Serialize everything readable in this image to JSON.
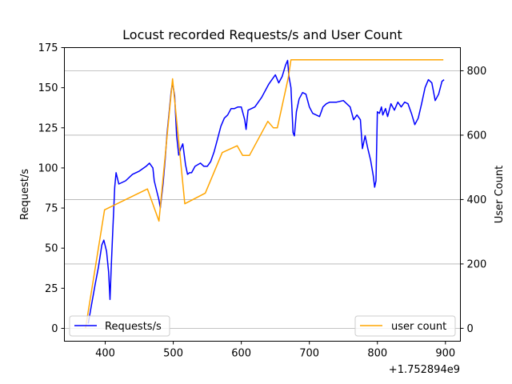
{
  "chart_data": {
    "type": "line",
    "title": "Locust recorded Requests/s and User Count",
    "x_offset_label": "+1.752894e9",
    "xlim": [
      340,
      922
    ],
    "x_ticks": [
      400,
      500,
      600,
      700,
      800,
      900
    ],
    "x_tick_labels": [
      "400",
      "500",
      "600",
      "700",
      "800",
      "900"
    ],
    "ylabel": "Request/s",
    "ylim": [
      -8,
      175
    ],
    "y_ticks": [
      0,
      25,
      50,
      75,
      100,
      125,
      150,
      175
    ],
    "y_tick_labels": [
      "0",
      "25",
      "50",
      "75",
      "100",
      "125",
      "150",
      "175"
    ],
    "y2label": "User Count",
    "y2lim": [
      -40,
      872
    ],
    "y2_ticks": [
      0,
      200,
      400,
      600,
      800
    ],
    "y2_tick_labels": [
      "0",
      "200",
      "400",
      "600",
      "800"
    ],
    "grid": "horizontal lines on the User Count axis",
    "series": [
      {
        "name": "Requests/s",
        "axis": "left",
        "color": "#0000ff",
        "x": [
          375,
          380,
          385,
          390,
          395,
          398,
          402,
          405,
          407,
          409,
          411,
          414,
          416,
          420,
          430,
          440,
          450,
          460,
          465,
          470,
          472,
          476,
          479,
          481,
          485,
          488,
          491,
          494,
          497,
          499,
          502,
          505,
          508,
          511,
          514,
          518,
          521,
          524,
          527,
          532,
          540,
          545,
          550,
          555,
          560,
          565,
          570,
          575,
          580,
          585,
          590,
          595,
          600,
          605,
          607,
          610,
          615,
          620,
          630,
          640,
          645,
          650,
          655,
          660,
          665,
          668,
          670,
          673,
          676,
          678,
          681,
          685,
          690,
          695,
          700,
          705,
          710,
          715,
          720,
          725,
          730,
          740,
          750,
          760,
          765,
          770,
          775,
          778,
          782,
          786,
          790,
          794,
          796,
          798,
          800,
          803,
          806,
          808,
          812,
          815,
          820,
          825,
          830,
          835,
          840,
          845,
          850,
          855,
          860,
          865,
          870,
          875,
          880,
          885,
          890,
          895,
          898
        ],
        "values": [
          3,
          15,
          27,
          38,
          52,
          55,
          48,
          35,
          18,
          40,
          60,
          88,
          97,
          90,
          92,
          96,
          98,
          101,
          103,
          100,
          92,
          85,
          80,
          75,
          90,
          105,
          122,
          135,
          148,
          153,
          145,
          120,
          108,
          112,
          115,
          102,
          96,
          97,
          97,
          101,
          103,
          101,
          101,
          104,
          110,
          118,
          126,
          131,
          133,
          137,
          137,
          138,
          138,
          130,
          124,
          136,
          137,
          138,
          144,
          152,
          155,
          158,
          153,
          157,
          164,
          167,
          157,
          150,
          122,
          120,
          135,
          143,
          147,
          146,
          138,
          134,
          133,
          132,
          138,
          140,
          141,
          141,
          142,
          138,
          130,
          133,
          130,
          112,
          120,
          112,
          105,
          95,
          88,
          92,
          135,
          134,
          138,
          133,
          137,
          132,
          140,
          136,
          141,
          138,
          141,
          140,
          134,
          127,
          131,
          140,
          150,
          155,
          153,
          142,
          146,
          154,
          155
        ]
      },
      {
        "name": "user count",
        "axis": "right",
        "color": "#ffa500",
        "x": [
          371,
          399,
          462,
          479,
          499,
          517,
          547,
          572,
          594,
          602,
          612,
          639,
          647,
          653,
          669,
          673,
          897
        ],
        "values": [
          0,
          368,
          433,
          333,
          775,
          387,
          420,
          546,
          567,
          537,
          537,
          643,
          623,
          623,
          778,
          834,
          834
        ]
      }
    ],
    "legends": [
      {
        "position": "lower-left",
        "entries": [
          "Requests/s"
        ]
      },
      {
        "position": "lower-right",
        "entries": [
          "user count"
        ]
      }
    ]
  }
}
